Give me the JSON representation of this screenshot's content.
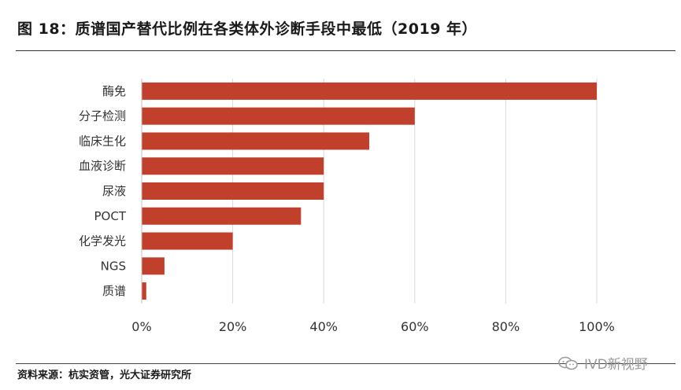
{
  "header": {
    "title": "图 18：质谱国产替代比例在各类体外诊断手段中最低（2019 年）"
  },
  "footer": {
    "source": "资料来源：杭实资管，光大证券研究所"
  },
  "watermark": {
    "text": "IVD新视野",
    "icon": "wechat-icon"
  },
  "colors": {
    "bar": "#C0402B",
    "grid": "#d9d9d9",
    "text": "#333333"
  },
  "chart_data": {
    "type": "bar",
    "orientation": "horizontal",
    "categories": [
      "酶免",
      "分子检测",
      "临床生化",
      "血液诊断",
      "尿液",
      "POCT",
      "化学发光",
      "NGS",
      "质谱"
    ],
    "values": [
      100,
      60,
      50,
      40,
      40,
      35,
      20,
      5,
      1
    ],
    "xlim": [
      0,
      100
    ],
    "xticks": [
      0,
      20,
      40,
      60,
      80,
      100
    ],
    "xtick_labels": [
      "0%",
      "20%",
      "40%",
      "60%",
      "80%",
      "100%"
    ],
    "grid": true
  }
}
